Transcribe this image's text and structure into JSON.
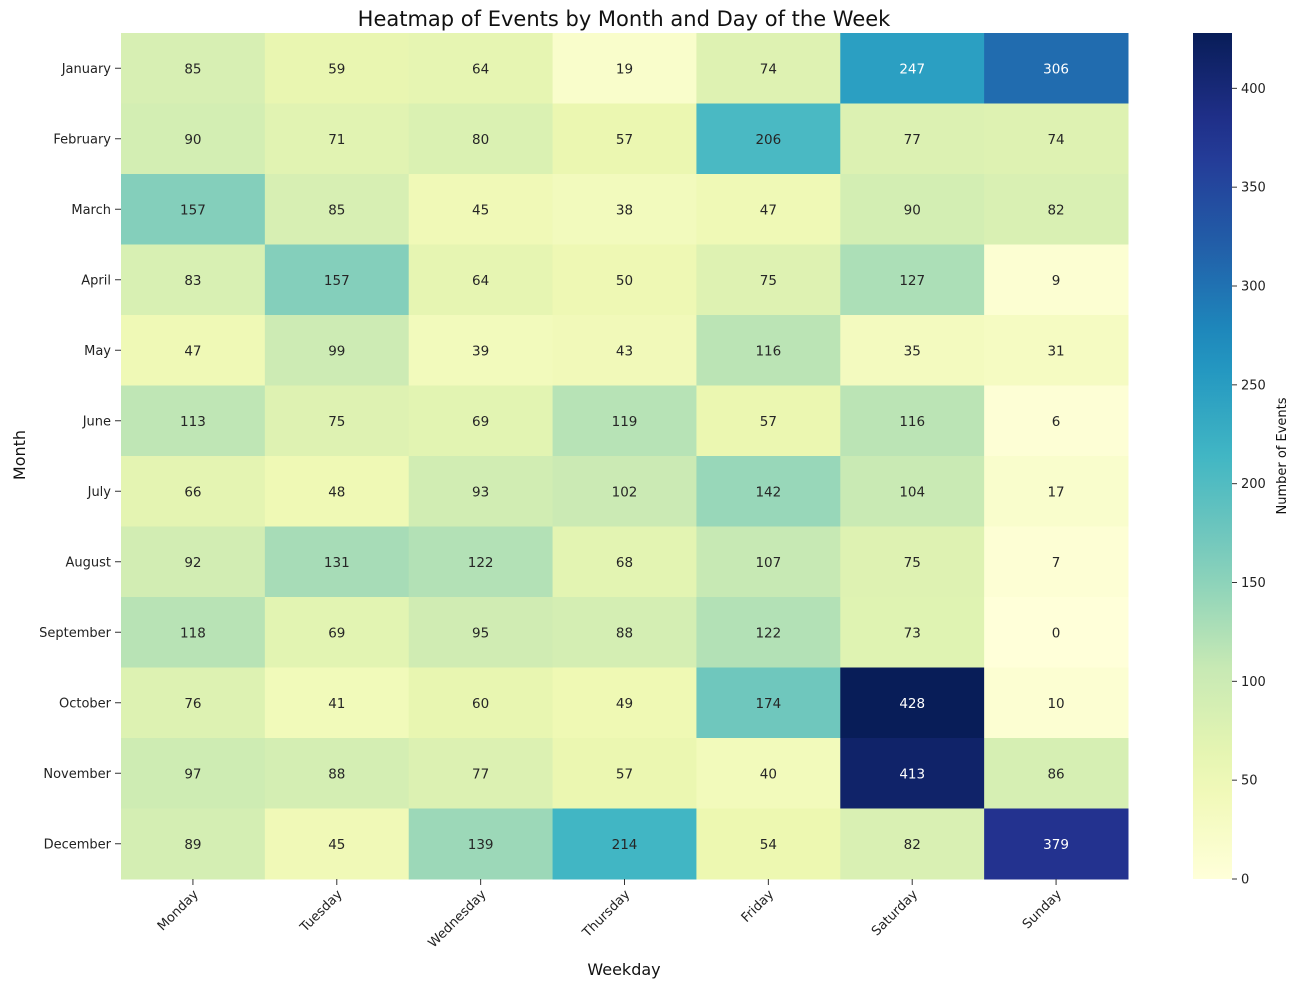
{
  "chart_data": {
    "type": "heatmap",
    "title": "Heatmap of Events by Month and Day of the Week",
    "xlabel": "Weekday",
    "ylabel": "Month",
    "colorbar_label": "Number of Events",
    "colormap": "YlGnBu",
    "vmin": 0,
    "vmax": 428,
    "colorbar_ticks": [
      0,
      50,
      100,
      150,
      200,
      250,
      300,
      350,
      400
    ],
    "x_categories": [
      "Monday",
      "Tuesday",
      "Wednesday",
      "Thursday",
      "Friday",
      "Saturday",
      "Sunday"
    ],
    "y_categories": [
      "January",
      "February",
      "March",
      "April",
      "May",
      "June",
      "July",
      "August",
      "September",
      "October",
      "November",
      "December"
    ],
    "values": [
      [
        85,
        59,
        64,
        19,
        74,
        247,
        306
      ],
      [
        90,
        71,
        80,
        57,
        206,
        77,
        74
      ],
      [
        157,
        85,
        45,
        38,
        47,
        90,
        82
      ],
      [
        83,
        157,
        64,
        50,
        75,
        127,
        9
      ],
      [
        47,
        99,
        39,
        43,
        116,
        35,
        31
      ],
      [
        113,
        75,
        69,
        119,
        57,
        116,
        6
      ],
      [
        66,
        48,
        93,
        102,
        142,
        104,
        17
      ],
      [
        92,
        131,
        122,
        68,
        107,
        75,
        7
      ],
      [
        118,
        69,
        95,
        88,
        122,
        73,
        0
      ],
      [
        76,
        41,
        60,
        49,
        174,
        428,
        10
      ],
      [
        97,
        88,
        77,
        57,
        40,
        413,
        86
      ],
      [
        89,
        45,
        139,
        214,
        54,
        82,
        379
      ]
    ]
  }
}
